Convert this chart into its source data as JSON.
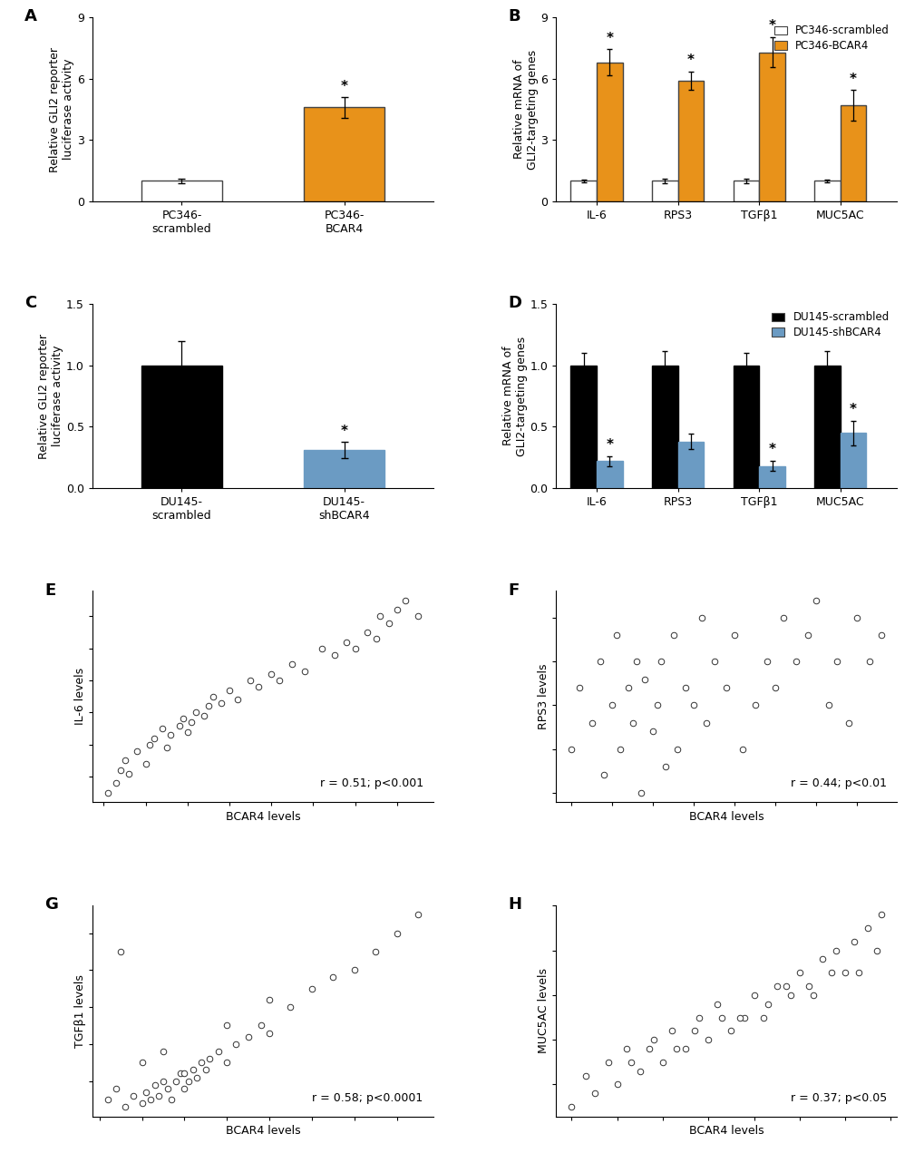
{
  "panel_A": {
    "categories": [
      "PC346-\nscrambled",
      "PC346-\nBCAR4"
    ],
    "values": [
      1.0,
      4.6
    ],
    "errors": [
      0.1,
      0.5
    ],
    "colors": [
      "#ffffff",
      "#E8921A"
    ],
    "edgecolors": [
      "#444444",
      "#444444"
    ],
    "ylim": [
      0,
      9
    ],
    "yticks": [
      0,
      3,
      6,
      9
    ],
    "ylabel": "Relative GLI2 reporter\nluciferase activity",
    "sig": [
      false,
      true
    ],
    "label": "A"
  },
  "panel_B": {
    "categories": [
      "IL-6",
      "RPS3",
      "TGFβ1",
      "MUC5AC"
    ],
    "scrambled_values": [
      1.0,
      1.0,
      1.0,
      1.0
    ],
    "bcar4_values": [
      6.8,
      5.9,
      7.3,
      4.7
    ],
    "scrambled_errors": [
      0.08,
      0.1,
      0.1,
      0.08
    ],
    "bcar4_errors": [
      0.65,
      0.45,
      0.75,
      0.75
    ],
    "colors_scrambled": "#ffffff",
    "colors_bcar4": "#E8921A",
    "edgecolor": "#444444",
    "ylim": [
      0,
      9
    ],
    "yticks": [
      0,
      3,
      6,
      9
    ],
    "ylabel": "Relative mRNA of\nGLI2-targeting genes",
    "sig_bcar4": [
      true,
      true,
      true,
      true
    ],
    "legend_labels": [
      "PC346-scrambled",
      "PC346-BCAR4"
    ],
    "legend_colors": [
      "#ffffff",
      "#E8921A"
    ],
    "label": "B"
  },
  "panel_C": {
    "categories": [
      "DU145-\nscrambled",
      "DU145-\nshBCAR4"
    ],
    "values": [
      1.0,
      0.31
    ],
    "errors": [
      0.2,
      0.07
    ],
    "colors": [
      "#000000",
      "#6B9BC3"
    ],
    "edgecolors": [
      "#000000",
      "#6B9BC3"
    ],
    "ylim": [
      0,
      1.5
    ],
    "yticks": [
      0,
      0.5,
      1.0,
      1.5
    ],
    "ylabel": "Relative GLI2 reporter\nluciferase activity",
    "sig": [
      false,
      true
    ],
    "label": "C"
  },
  "panel_D": {
    "categories": [
      "IL-6",
      "RPS3",
      "TGFβ1",
      "MUC5AC"
    ],
    "scrambled_values": [
      1.0,
      1.0,
      1.0,
      1.0
    ],
    "shbcar4_values": [
      0.22,
      0.38,
      0.18,
      0.45
    ],
    "scrambled_errors": [
      0.1,
      0.12,
      0.1,
      0.12
    ],
    "shbcar4_errors": [
      0.04,
      0.06,
      0.04,
      0.1
    ],
    "colors_scrambled": "#000000",
    "colors_shbcar4": "#6B9BC3",
    "edgecolor_scrambled": "#000000",
    "edgecolor_shbcar4": "#6B9BC3",
    "ylim": [
      0,
      1.5
    ],
    "yticks": [
      0,
      0.5,
      1.0,
      1.5
    ],
    "ylabel": "Relative mRNA of\nGLI2-targeting genes",
    "sig_shbcar4": [
      true,
      false,
      true,
      true
    ],
    "legend_labels": [
      "DU145-scrambled",
      "DU145-shBCAR4"
    ],
    "legend_colors": [
      "#000000",
      "#6B9BC3"
    ],
    "label": "D"
  },
  "panel_E": {
    "xlabel": "BCAR4 levels",
    "ylabel": "IL-6 levels",
    "annotation": "r = 0.51; p<0.001",
    "label": "E",
    "x": [
      1.1,
      1.3,
      1.4,
      1.5,
      1.6,
      1.8,
      2.0,
      2.1,
      2.2,
      2.4,
      2.5,
      2.6,
      2.8,
      2.9,
      3.0,
      3.1,
      3.2,
      3.4,
      3.5,
      3.6,
      3.8,
      4.0,
      4.2,
      4.5,
      4.7,
      5.0,
      5.2,
      5.5,
      5.8,
      6.2,
      6.5,
      6.8,
      7.0,
      7.3,
      7.5,
      7.6,
      7.8,
      8.0,
      8.2,
      8.5
    ],
    "y": [
      1.5,
      1.8,
      2.2,
      2.5,
      2.1,
      2.8,
      2.4,
      3.0,
      3.2,
      3.5,
      2.9,
      3.3,
      3.6,
      3.8,
      3.4,
      3.7,
      4.0,
      3.9,
      4.2,
      4.5,
      4.3,
      4.7,
      4.4,
      5.0,
      4.8,
      5.2,
      5.0,
      5.5,
      5.3,
      6.0,
      5.8,
      6.2,
      6.0,
      6.5,
      6.3,
      7.0,
      6.8,
      7.2,
      7.5,
      7.0
    ]
  },
  "panel_F": {
    "xlabel": "BCAR4 levels",
    "ylabel": "RPS3 levels",
    "annotation": "r = 0.44; p<0.01",
    "label": "F",
    "x": [
      1.0,
      1.2,
      1.5,
      1.7,
      1.8,
      2.0,
      2.1,
      2.2,
      2.4,
      2.5,
      2.6,
      2.7,
      2.8,
      3.0,
      3.1,
      3.2,
      3.3,
      3.5,
      3.6,
      3.8,
      4.0,
      4.2,
      4.3,
      4.5,
      4.8,
      5.0,
      5.2,
      5.5,
      5.8,
      6.0,
      6.2,
      6.5,
      6.8,
      7.0,
      7.3,
      7.5,
      7.8,
      8.0,
      8.3,
      8.6
    ],
    "y": [
      4.5,
      5.2,
      4.8,
      5.5,
      4.2,
      5.0,
      5.8,
      4.5,
      5.2,
      4.8,
      5.5,
      4.0,
      5.3,
      4.7,
      5.0,
      5.5,
      4.3,
      5.8,
      4.5,
      5.2,
      5.0,
      6.0,
      4.8,
      5.5,
      5.2,
      5.8,
      4.5,
      5.0,
      5.5,
      5.2,
      6.0,
      5.5,
      5.8,
      6.2,
      5.0,
      5.5,
      4.8,
      6.0,
      5.5,
      5.8
    ]
  },
  "panel_G": {
    "xlabel": "BCAR4 levels",
    "ylabel": "TGFβ1 levels",
    "annotation": "r = 0.58; p<0.0001",
    "label": "G",
    "x": [
      1.2,
      1.4,
      1.6,
      1.8,
      2.0,
      2.1,
      2.2,
      2.3,
      2.4,
      2.5,
      2.6,
      2.7,
      2.8,
      2.9,
      3.0,
      3.1,
      3.2,
      3.3,
      3.4,
      3.5,
      3.6,
      3.8,
      4.0,
      4.2,
      4.5,
      4.8,
      5.0,
      5.5,
      6.0,
      6.5,
      7.0,
      7.5,
      8.0,
      8.5,
      1.5,
      2.0,
      2.5,
      3.0,
      4.0,
      5.0
    ],
    "y": [
      2.5,
      2.8,
      2.3,
      2.6,
      2.4,
      2.7,
      2.5,
      2.9,
      2.6,
      3.0,
      2.8,
      2.5,
      3.0,
      3.2,
      2.8,
      3.0,
      3.3,
      3.1,
      3.5,
      3.3,
      3.6,
      3.8,
      3.5,
      4.0,
      4.2,
      4.5,
      4.3,
      5.0,
      5.5,
      5.8,
      6.0,
      6.5,
      7.0,
      7.5,
      6.5,
      3.5,
      3.8,
      3.2,
      4.5,
      5.2
    ]
  },
  "panel_H": {
    "xlabel": "BCAR4 levels",
    "ylabel": "MUC5AC levels",
    "annotation": "r = 0.37; p<0.05",
    "label": "H",
    "x": [
      1.0,
      1.3,
      1.5,
      1.8,
      2.0,
      2.2,
      2.5,
      2.8,
      3.0,
      3.2,
      3.5,
      3.8,
      4.0,
      4.2,
      4.5,
      4.8,
      5.0,
      5.2,
      5.5,
      5.8,
      6.0,
      6.2,
      6.5,
      6.8,
      7.0,
      7.2,
      7.5,
      7.8,
      2.3,
      3.3,
      4.3,
      5.3,
      6.3,
      7.3,
      2.7,
      3.7,
      4.7,
      5.7,
      6.7,
      7.7
    ],
    "y": [
      3.5,
      4.2,
      3.8,
      4.5,
      4.0,
      4.8,
      4.3,
      5.0,
      4.5,
      5.2,
      4.8,
      5.5,
      5.0,
      5.8,
      5.2,
      5.5,
      6.0,
      5.5,
      6.2,
      6.0,
      6.5,
      6.2,
      6.8,
      7.0,
      6.5,
      7.2,
      7.5,
      7.8,
      4.5,
      4.8,
      5.5,
      5.8,
      6.0,
      6.5,
      4.8,
      5.2,
      5.5,
      6.2,
      6.5,
      7.0
    ]
  },
  "bar_width": 0.32,
  "fontsize": 9,
  "tick_fontsize": 9,
  "label_fontsize": 9,
  "scatter_marker_size": 22,
  "scatter_marker_color": "white",
  "scatter_marker_edge": "#333333"
}
